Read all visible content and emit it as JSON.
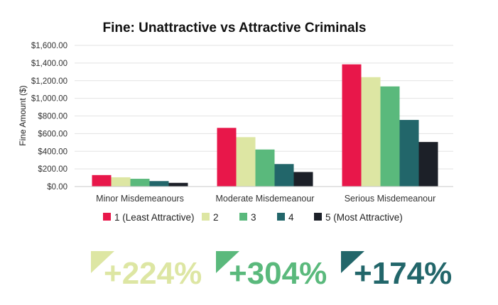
{
  "colors": {
    "series": [
      "#e8174a",
      "#dde6a3",
      "#5ab97c",
      "#22666a",
      "#1c2028"
    ],
    "grid": "#e3e3e3",
    "axis": "#c8c8c8"
  },
  "chart_data": {
    "type": "bar",
    "title": "Fine: Unattractive vs Attractive Criminals",
    "ylabel": "Fine Amount ($)",
    "xlabel": "",
    "ylim": [
      0,
      1600
    ],
    "yticks": [
      0,
      200,
      400,
      600,
      800,
      1000,
      1200,
      1400,
      1600
    ],
    "ytick_labels": [
      "$0.00",
      "$200.00",
      "$400.00",
      "$600.00",
      "$800.00",
      "$1,000.00",
      "$1,200.00",
      "$1,400.00",
      "$1,600.00"
    ],
    "grid": true,
    "legend_position": "bottom",
    "categories": [
      "Minor Misdemeanours",
      "Moderate Misdemeanour",
      "Serious Misdemeanour"
    ],
    "series": [
      {
        "name": "1 (Least Attractive)",
        "values": [
          130,
          665,
          1385
        ]
      },
      {
        "name": "2",
        "values": [
          105,
          560,
          1240
        ]
      },
      {
        "name": "3",
        "values": [
          88,
          420,
          1135
        ]
      },
      {
        "name": "4",
        "values": [
          62,
          255,
          755
        ]
      },
      {
        "name": "5 (Most Attractive)",
        "values": [
          42,
          165,
          505
        ]
      }
    ]
  },
  "stats": [
    {
      "text": "+224%",
      "color": "#dde6a3"
    },
    {
      "text": "+304%",
      "color": "#5ab97c"
    },
    {
      "text": "+174%",
      "color": "#22666a"
    }
  ]
}
